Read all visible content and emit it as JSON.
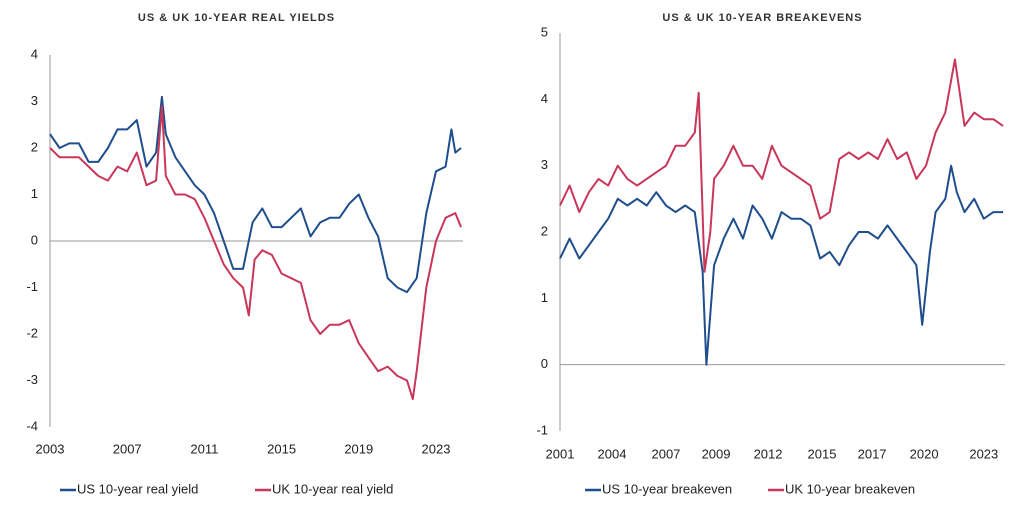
{
  "chart_data": [
    {
      "type": "line",
      "title": "US & UK 10-YEAR REAL YIELDS",
      "xlim": [
        2003,
        2024.4
      ],
      "xticks": [
        2003,
        2007,
        2011,
        2015,
        2019,
        2023
      ],
      "ylim": [
        -4,
        4
      ],
      "yticks": [
        -4,
        -3,
        -2,
        -1,
        0,
        1,
        2,
        3,
        4
      ],
      "series": [
        {
          "name": "US 10-year real yield",
          "color": "#1f4e8c",
          "x": [
            2003,
            2003.5,
            2004,
            2004.5,
            2005,
            2005.5,
            2006,
            2006.5,
            2007,
            2007.5,
            2008,
            2008.5,
            2008.8,
            2009,
            2009.5,
            2010,
            2010.5,
            2011,
            2011.5,
            2012,
            2012.5,
            2013,
            2013.5,
            2014,
            2014.5,
            2015,
            2015.5,
            2016,
            2016.5,
            2017,
            2017.5,
            2018,
            2018.5,
            2019,
            2019.5,
            2020,
            2020.5,
            2021,
            2021.5,
            2022,
            2022.5,
            2023,
            2023.5,
            2023.8,
            2024,
            2024.3
          ],
          "values": [
            2.3,
            2.0,
            2.1,
            2.1,
            1.7,
            1.7,
            2.0,
            2.4,
            2.4,
            2.6,
            1.6,
            1.9,
            3.1,
            2.3,
            1.8,
            1.5,
            1.2,
            1.0,
            0.6,
            0.0,
            -0.6,
            -0.6,
            0.4,
            0.7,
            0.3,
            0.3,
            0.5,
            0.7,
            0.1,
            0.4,
            0.5,
            0.5,
            0.8,
            1.0,
            0.5,
            0.1,
            -0.8,
            -1.0,
            -1.1,
            -0.8,
            0.6,
            1.5,
            1.6,
            2.4,
            1.9,
            2.0
          ]
        },
        {
          "name": "UK 10-year real yield",
          "color": "#c8375a",
          "x": [
            2003,
            2003.5,
            2004,
            2004.5,
            2005,
            2005.5,
            2006,
            2006.5,
            2007,
            2007.5,
            2008,
            2008.5,
            2008.8,
            2009,
            2009.5,
            2010,
            2010.5,
            2011,
            2011.5,
            2012,
            2012.5,
            2013,
            2013.3,
            2013.6,
            2014,
            2014.5,
            2015,
            2015.5,
            2016,
            2016.5,
            2017,
            2017.5,
            2018,
            2018.5,
            2019,
            2019.5,
            2020,
            2020.5,
            2021,
            2021.5,
            2021.8,
            2022,
            2022.5,
            2023,
            2023.5,
            2024,
            2024.3
          ],
          "values": [
            2.0,
            1.8,
            1.8,
            1.8,
            1.6,
            1.4,
            1.3,
            1.6,
            1.5,
            1.9,
            1.2,
            1.3,
            2.9,
            1.4,
            1.0,
            1.0,
            0.9,
            0.5,
            0.0,
            -0.5,
            -0.8,
            -1.0,
            -1.6,
            -0.4,
            -0.2,
            -0.3,
            -0.7,
            -0.8,
            -0.9,
            -1.7,
            -2.0,
            -1.8,
            -1.8,
            -1.7,
            -2.2,
            -2.5,
            -2.8,
            -2.7,
            -2.9,
            -3.0,
            -3.4,
            -2.8,
            -1.0,
            0.0,
            0.5,
            0.6,
            0.3
          ]
        }
      ]
    },
    {
      "type": "line",
      "title": "US & UK 10-YEAR BREAKEVENS",
      "xlim": [
        2001,
        2024.1
      ],
      "xticks": [
        {
          "value": 2001,
          "label": "2001"
        },
        {
          "value": 2003.7,
          "label": "2004"
        },
        {
          "value": 2006.5,
          "label": "2007"
        },
        {
          "value": 2009.1,
          "label": "2009"
        },
        {
          "value": 2011.8,
          "label": "2012"
        },
        {
          "value": 2014.6,
          "label": "2015"
        },
        {
          "value": 2017.2,
          "label": "2017"
        },
        {
          "value": 2019.9,
          "label": "2020"
        },
        {
          "value": 2023.0,
          "label": "2023"
        }
      ],
      "ylim": [
        -1,
        5
      ],
      "yticks": [
        -1,
        0,
        1,
        2,
        3,
        4,
        5
      ],
      "series": [
        {
          "name": "US 10-year breakeven",
          "color": "#1f4e8c",
          "x": [
            2001,
            2001.5,
            2002,
            2002.5,
            2003,
            2003.5,
            2004,
            2004.5,
            2005,
            2005.5,
            2006,
            2006.5,
            2007,
            2007.5,
            2008,
            2008.4,
            2008.6,
            2009,
            2009.5,
            2010,
            2010.5,
            2011,
            2011.5,
            2012,
            2012.5,
            2013,
            2013.5,
            2014,
            2014.5,
            2015,
            2015.5,
            2016,
            2016.5,
            2017,
            2017.5,
            2018,
            2018.5,
            2019,
            2019.5,
            2019.8,
            2020.2,
            2020.5,
            2021,
            2021.3,
            2021.6,
            2022,
            2022.5,
            2023,
            2023.5,
            2024
          ],
          "values": [
            1.6,
            1.9,
            1.6,
            1.8,
            2.0,
            2.2,
            2.5,
            2.4,
            2.5,
            2.4,
            2.6,
            2.4,
            2.3,
            2.4,
            2.3,
            1.4,
            0.0,
            1.5,
            1.9,
            2.2,
            1.9,
            2.4,
            2.2,
            1.9,
            2.3,
            2.2,
            2.2,
            2.1,
            1.6,
            1.7,
            1.5,
            1.8,
            2.0,
            2.0,
            1.9,
            2.1,
            1.9,
            1.7,
            1.5,
            0.6,
            1.7,
            2.3,
            2.5,
            3.0,
            2.6,
            2.3,
            2.5,
            2.2,
            2.3,
            2.3
          ]
        },
        {
          "name": "UK 10-year breakeven",
          "color": "#c8375a",
          "x": [
            2001,
            2001.5,
            2002,
            2002.5,
            2003,
            2003.5,
            2004,
            2004.5,
            2005,
            2005.5,
            2006,
            2006.5,
            2007,
            2007.5,
            2008,
            2008.2,
            2008.5,
            2008.8,
            2009,
            2009.5,
            2010,
            2010.5,
            2011,
            2011.5,
            2012,
            2012.5,
            2013,
            2013.5,
            2014,
            2014.5,
            2015,
            2015.5,
            2016,
            2016.5,
            2017,
            2017.5,
            2018,
            2018.5,
            2019,
            2019.5,
            2020,
            2020.5,
            2021,
            2021.5,
            2021.8,
            2022,
            2022.5,
            2023,
            2023.5,
            2024
          ],
          "values": [
            2.4,
            2.7,
            2.3,
            2.6,
            2.8,
            2.7,
            3.0,
            2.8,
            2.7,
            2.8,
            2.9,
            3.0,
            3.3,
            3.3,
            3.5,
            4.1,
            1.4,
            2.0,
            2.8,
            3.0,
            3.3,
            3.0,
            3.0,
            2.8,
            3.3,
            3.0,
            2.9,
            2.8,
            2.7,
            2.2,
            2.3,
            3.1,
            3.2,
            3.1,
            3.2,
            3.1,
            3.4,
            3.1,
            3.2,
            2.8,
            3.0,
            3.5,
            3.8,
            4.6,
            4.0,
            3.6,
            3.8,
            3.7,
            3.7,
            3.6
          ]
        }
      ]
    }
  ]
}
